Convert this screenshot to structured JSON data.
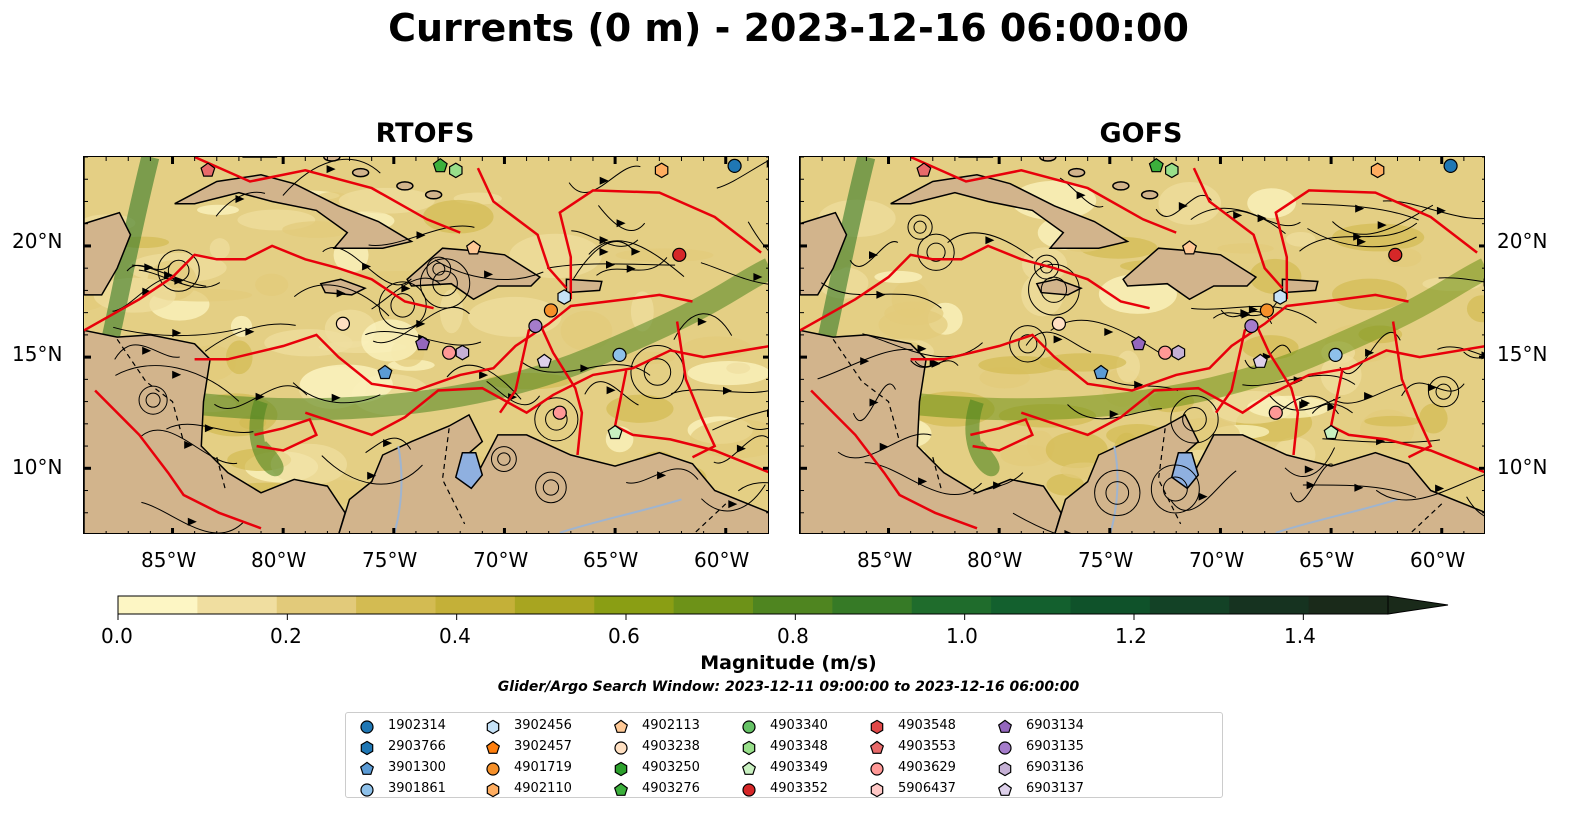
{
  "title": "Currents (0 m) - 2023-12-16 06:00:00",
  "panels": [
    {
      "title": "RTOFS"
    },
    {
      "title": "GOFS"
    }
  ],
  "map_extent": {
    "lon": [
      -89,
      -58
    ],
    "lat": [
      7,
      24
    ]
  },
  "lon_ticks": [
    "85°W",
    "80°W",
    "75°W",
    "70°W",
    "65°W",
    "60°W"
  ],
  "lat_ticks": [
    "20°N",
    "15°N",
    "10°N"
  ],
  "colorbar": {
    "label": "Magnitude (m/s)",
    "ticks": [
      "0.0",
      "0.2",
      "0.4",
      "0.6",
      "0.8",
      "1.0",
      "1.2",
      "1.4"
    ],
    "range": [
      0,
      1.5
    ],
    "colors": [
      "#fdf6c4",
      "#f0dea0",
      "#e2ca7a",
      "#d3bb52",
      "#c4b038",
      "#a8a520",
      "#8a9e14",
      "#6d9218",
      "#4f8520",
      "#367a26",
      "#1f6c2c",
      "#13602e",
      "#0f522a",
      "#134226",
      "#163320",
      "#1a2a1a"
    ]
  },
  "search_window": "Glider/Argo Search Window: 2023-12-11 09:00:00 to 2023-12-16 06:00:00",
  "legend": [
    {
      "id": "1902314",
      "color": "#1f77b4",
      "marker": "circle"
    },
    {
      "id": "2903766",
      "color": "#1f77b4",
      "marker": "hexagon"
    },
    {
      "id": "3901300",
      "color": "#5b9bd5",
      "marker": "pentagon"
    },
    {
      "id": "3901861",
      "color": "#8ec1ea",
      "marker": "circle"
    },
    {
      "id": "3902456",
      "color": "#c6e2f7",
      "marker": "hexagon"
    },
    {
      "id": "3902457",
      "color": "#ff7f0e",
      "marker": "pentagon"
    },
    {
      "id": "4901719",
      "color": "#f5902a",
      "marker": "circle"
    },
    {
      "id": "4902110",
      "color": "#ffad60",
      "marker": "hexagon"
    },
    {
      "id": "4902113",
      "color": "#ffc996",
      "marker": "pentagon"
    },
    {
      "id": "4903238",
      "color": "#ffe0c2",
      "marker": "circle"
    },
    {
      "id": "4903250",
      "color": "#2ca02c",
      "marker": "hexagon"
    },
    {
      "id": "4903276",
      "color": "#3cb03c",
      "marker": "pentagon"
    },
    {
      "id": "4903340",
      "color": "#66c266",
      "marker": "circle"
    },
    {
      "id": "4903348",
      "color": "#98df8a",
      "marker": "hexagon"
    },
    {
      "id": "4903349",
      "color": "#c8f0c0",
      "marker": "pentagon"
    },
    {
      "id": "4903352",
      "color": "#d62728",
      "marker": "circle"
    },
    {
      "id": "4903548",
      "color": "#e04848",
      "marker": "hexagon"
    },
    {
      "id": "4903553",
      "color": "#e86a6a",
      "marker": "pentagon"
    },
    {
      "id": "4903629",
      "color": "#ff9896",
      "marker": "circle"
    },
    {
      "id": "5906437",
      "color": "#ffc8c6",
      "marker": "hexagon"
    },
    {
      "id": "6903134",
      "color": "#9467bd",
      "marker": "pentagon"
    },
    {
      "id": "6903135",
      "color": "#a57ccb",
      "marker": "circle"
    },
    {
      "id": "6903136",
      "color": "#c5b0d5",
      "marker": "hexagon"
    },
    {
      "id": "6903137",
      "color": "#ddd0ea",
      "marker": "pentagon"
    }
  ],
  "markers": [
    {
      "id": "1902314",
      "lon": -59.6,
      "lat": 23.6
    },
    {
      "id": "4903353",
      "lon": -83.4,
      "lat": 23.4
    },
    {
      "id": "4903276",
      "lon": -72.9,
      "lat": 23.6
    },
    {
      "id": "4903348",
      "lon": -72.2,
      "lat": 23.4
    },
    {
      "id": "4902110",
      "lon": -62.9,
      "lat": 23.4
    },
    {
      "id": "4902113",
      "lon": -71.4,
      "lat": 19.9
    },
    {
      "id": "4903352",
      "lon": -62.1,
      "lat": 19.6
    },
    {
      "id": "3902456",
      "lon": -67.3,
      "lat": 17.7
    },
    {
      "id": "4901719",
      "lon": -67.9,
      "lat": 17.1
    },
    {
      "id": "4903238",
      "lon": -77.3,
      "lat": 16.5
    },
    {
      "id": "6903135",
      "lon": -68.6,
      "lat": 16.4
    },
    {
      "id": "6903134",
      "lon": -73.7,
      "lat": 15.6
    },
    {
      "id": "4903629",
      "lon": -72.5,
      "lat": 15.2
    },
    {
      "id": "6903136",
      "lon": -71.9,
      "lat": 15.2
    },
    {
      "id": "6903137",
      "lon": -68.2,
      "lat": 14.8
    },
    {
      "id": "3901861",
      "lon": -64.8,
      "lat": 15.1
    },
    {
      "id": "3901300",
      "lon": -75.4,
      "lat": 14.3
    },
    {
      "id": "4903629",
      "lon": -67.5,
      "lat": 12.5
    },
    {
      "id": "4903349",
      "lon": -65.0,
      "lat": 11.6
    }
  ]
}
